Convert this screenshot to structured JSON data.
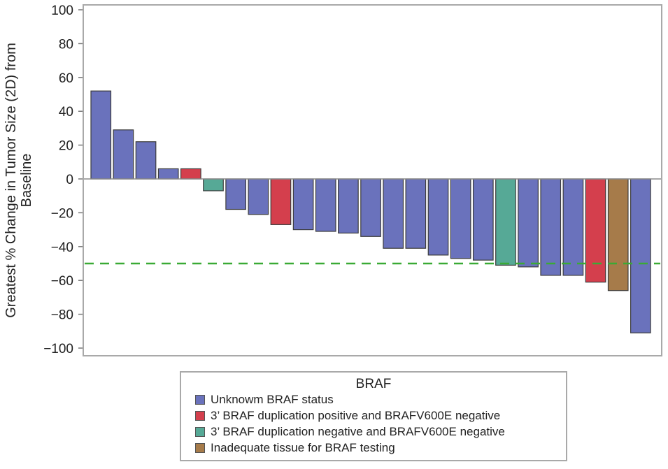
{
  "chart_data": {
    "type": "bar",
    "title": "",
    "xlabel": "",
    "ylabel": "Greatest % Change in Tumor Size (2D) from Baseline",
    "ylabel_lines": [
      "Greatest % Change in Tumor Size (2D) from",
      "Baseline"
    ],
    "ylim": [
      -100,
      100
    ],
    "yticks": [
      100,
      80,
      60,
      40,
      20,
      0,
      -20,
      -40,
      -60,
      -80,
      -100
    ],
    "ytick_labels": [
      "100",
      "80",
      "60",
      "40",
      "20",
      "0",
      "−20",
      "−40",
      "−60",
      "−80",
      "−100"
    ],
    "reference_line": {
      "value": -50,
      "style": "dashed",
      "color": "#3aaa35"
    },
    "groups": {
      "unknown": {
        "label": "Unknowm BRAF status",
        "color": "#6a72bc"
      },
      "dup_pos": {
        "label": "3’ BRAF duplication positive and BRAFV600E negative",
        "color": "#d43f4d"
      },
      "dup_neg": {
        "label": "3’ BRAF duplication negative and BRAFV600E negative",
        "color": "#56a996"
      },
      "inadequate": {
        "label": "Inadequate tissue for BRAF testing",
        "color": "#a67b4a"
      }
    },
    "values": [
      52,
      29,
      22,
      6,
      6,
      -7,
      -18,
      -21,
      -27,
      -30,
      -31,
      -32,
      -34,
      -41,
      -41,
      -45,
      -47,
      -48,
      -51,
      -52,
      -57,
      -57,
      -61,
      -66,
      -91
    ],
    "bar_groups": [
      "unknown",
      "unknown",
      "unknown",
      "unknown",
      "dup_pos",
      "dup_neg",
      "unknown",
      "unknown",
      "dup_pos",
      "unknown",
      "unknown",
      "unknown",
      "unknown",
      "unknown",
      "unknown",
      "unknown",
      "unknown",
      "unknown",
      "dup_neg",
      "unknown",
      "unknown",
      "unknown",
      "dup_pos",
      "inadequate",
      "unknown"
    ]
  },
  "legend": {
    "title": "BRAF",
    "items": [
      {
        "label": "Unknowm BRAF status",
        "color": "#6a72bc"
      },
      {
        "label": "3’ BRAF duplication positive and BRAFV600E negative",
        "color": "#d43f4d"
      },
      {
        "label": "3’ BRAF duplication negative and BRAFV600E negative",
        "color": "#56a996"
      },
      {
        "label": "Inadequate tissue for BRAF testing",
        "color": "#a67b4a"
      }
    ]
  }
}
